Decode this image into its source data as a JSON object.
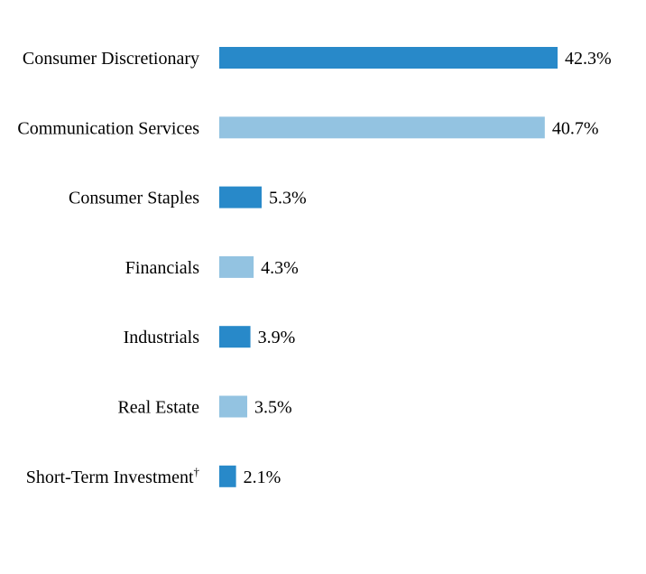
{
  "chart_data": {
    "type": "bar",
    "orientation": "horizontal",
    "categories": [
      "Consumer Discretionary",
      "Communication Services",
      "Consumer Staples",
      "Financials",
      "Industrials",
      "Real Estate",
      "Short-Term Investment"
    ],
    "category_superscripts": [
      "",
      "",
      "",
      "",
      "",
      "",
      "†"
    ],
    "values": [
      42.3,
      40.7,
      5.3,
      4.3,
      3.9,
      3.5,
      2.1
    ],
    "value_labels": [
      "42.3%",
      "40.7%",
      "5.3%",
      "4.3%",
      "3.9%",
      "3.5%",
      "2.1%"
    ],
    "unit": "%",
    "bar_colors": [
      "#2889c9",
      "#93c3e1",
      "#2889c9",
      "#93c3e1",
      "#2889c9",
      "#93c3e1",
      "#2889c9"
    ],
    "xlim": [
      0,
      42.3
    ],
    "grid": false,
    "title": "",
    "xlabel": "",
    "ylabel": ""
  }
}
